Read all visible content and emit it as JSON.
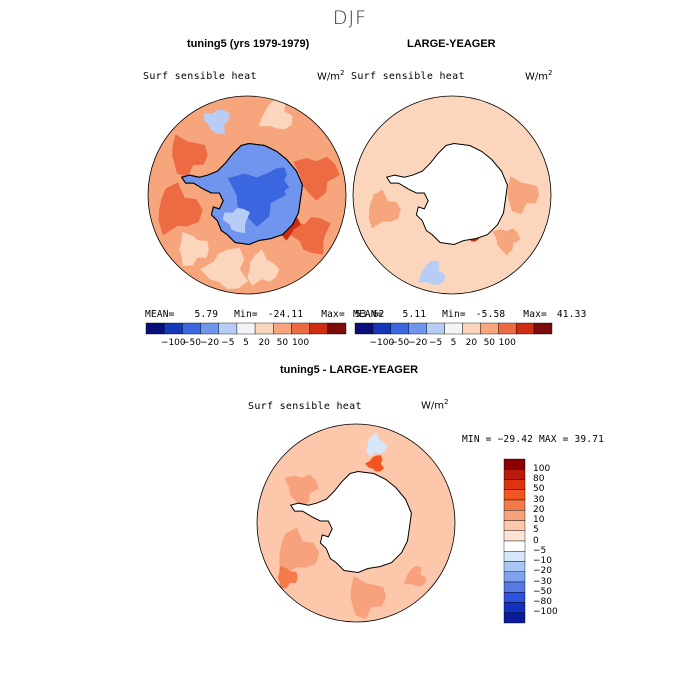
{
  "chart_data": [
    {
      "type": "heatmap",
      "projection": "south-polar-stereographic",
      "figure_title": "DJF",
      "title": "tuning5 (yrs 1979-1979)",
      "variable": "Surf sensible heat",
      "units_base": "W/m",
      "units_exp": "2",
      "mean_label": "MEAN=",
      "mean": "5.79",
      "min_label": "Min=",
      "min": "-24.11",
      "max_label": "Max=",
      "max": "53.62",
      "colorbar_ticks": [
        "−100",
        "−50",
        "−20",
        "−5",
        "5",
        "20",
        "50",
        "100"
      ]
    },
    {
      "type": "heatmap",
      "projection": "south-polar-stereographic",
      "title": "LARGE-YEAGER",
      "variable": "Surf sensible heat",
      "units_base": "W/m",
      "units_exp": "2",
      "mean_label": "MEAN=",
      "mean": "5.11",
      "min_label": "Min=",
      "min": "-5.58",
      "max_label": "Max=",
      "max": "41.33",
      "colorbar_ticks": [
        "−100",
        "−50",
        "−20",
        "−5",
        "5",
        "20",
        "50",
        "100"
      ]
    },
    {
      "type": "heatmap",
      "projection": "south-polar-stereographic",
      "title": "tuning5 - LARGE-YEAGER",
      "variable": "Surf sensible heat",
      "units_base": "W/m",
      "units_exp": "2",
      "minmax_text": "MIN = −29.42 MAX =  39.71",
      "colorbar_levels": [
        "100",
        "80",
        "50",
        "30",
        "20",
        "10",
        "5",
        "0",
        "−5",
        "−10",
        "−20",
        "−30",
        "−50",
        "−80",
        "−100"
      ]
    }
  ],
  "palette": {
    "diverging_11": [
      "#0a0f7a",
      "#1438b8",
      "#3a66e0",
      "#6f95ef",
      "#b8cdf6",
      "#f3f4f8",
      "#fbd6bd",
      "#f6a57d",
      "#ec6b43",
      "#cf2d12",
      "#7c0b0b"
    ],
    "diff_16": [
      "#8b0000",
      "#b71c0a",
      "#dd3311",
      "#f15522",
      "#f57a4b",
      "#f7a27c",
      "#fcc7ab",
      "#fde5d5",
      "#ffffff",
      "#d6e6fb",
      "#aac6f3",
      "#7ea2ec",
      "#5679e6",
      "#2f52dc",
      "#1430c4",
      "#0a1b9a"
    ],
    "land": "#ffffff",
    "coast": "#000000"
  }
}
